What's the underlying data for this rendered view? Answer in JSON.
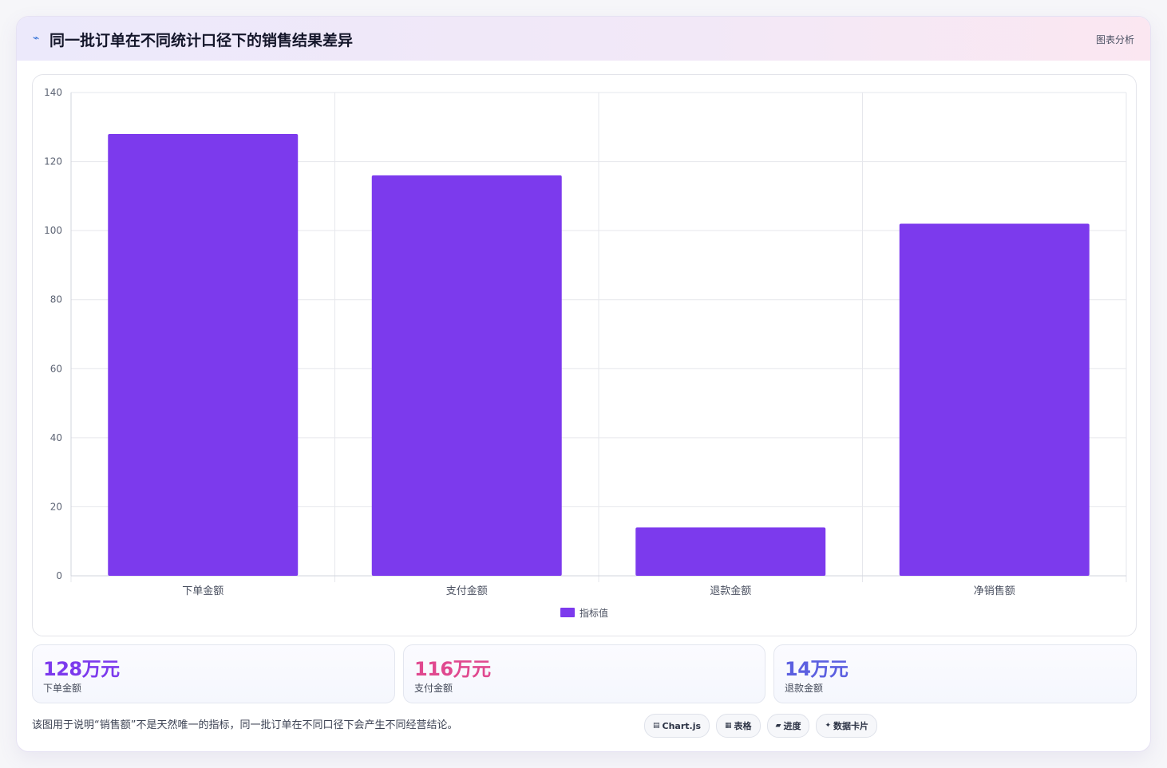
{
  "header": {
    "icon": "chart-line-icon",
    "title": "同一批订单在不同统计口径下的销售结果差异",
    "tag": "图表分析"
  },
  "chart_data": {
    "type": "bar",
    "categories": [
      "下单金额",
      "支付金额",
      "退款金额",
      "净销售额"
    ],
    "series": [
      {
        "name": "指标值",
        "values": [
          128,
          116,
          14,
          102
        ],
        "color": "#7c3aed"
      }
    ],
    "ylim": [
      0,
      140
    ],
    "yticks": [
      "0",
      "20",
      "40",
      "60",
      "80",
      "100",
      "120",
      "140"
    ],
    "grid": true,
    "legend": "bottom",
    "title": "",
    "xlabel": "",
    "ylabel": ""
  },
  "stats": [
    {
      "value": "128万元",
      "label": "下单金额",
      "color": "#7c3aed"
    },
    {
      "value": "116万元",
      "label": "支付金额",
      "color": "#e0498f"
    },
    {
      "value": "14万元",
      "label": "退款金额",
      "color": "#5b5fe0"
    }
  ],
  "footer": {
    "note": "该图用于说明“销售额”不是天然唯一的指标，同一批订单在不同口径下会产生不同经营结论。",
    "pills": [
      {
        "icon": "chart-icon",
        "glyph": "▤",
        "label": "Chart.js"
      },
      {
        "icon": "table-icon",
        "glyph": "▦",
        "label": "表格"
      },
      {
        "icon": "progress-icon",
        "glyph": "▰",
        "label": "进度"
      },
      {
        "icon": "sparkle-icon",
        "glyph": "✦",
        "label": "数据卡片"
      }
    ]
  }
}
